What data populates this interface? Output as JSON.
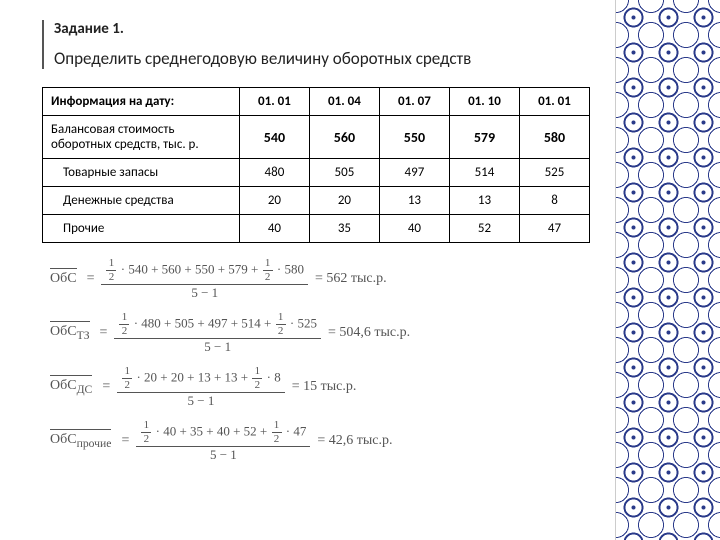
{
  "title": "Задание 1.",
  "subtitle": "Определить среднегодовую величину оборотных средств",
  "table": {
    "header": [
      "Информация на дату:",
      "01. 01",
      "01. 04",
      "01. 07",
      "01. 10",
      "01. 01"
    ],
    "rows": [
      {
        "label": "Балансовая стоимость оборотных средств, тыс. р.",
        "vals": [
          "540",
          "560",
          "550",
          "579",
          "580"
        ],
        "bold": true
      },
      {
        "label": "Товарные запасы",
        "vals": [
          "480",
          "505",
          "497",
          "514",
          "525"
        ],
        "indent": true
      },
      {
        "label": "Денежные средства",
        "vals": [
          "20",
          "20",
          "13",
          "13",
          "8"
        ],
        "indent": true
      },
      {
        "label": "Прочие",
        "vals": [
          "40",
          "35",
          "40",
          "52",
          "47"
        ],
        "indent": true
      }
    ],
    "col_widths": [
      "36%",
      "12.8%",
      "12.8%",
      "12.8%",
      "12.8%",
      "12.8%"
    ]
  },
  "formulas": [
    {
      "lhs": "ОбС",
      "terms": [
        "540",
        "560",
        "550",
        "579",
        "580"
      ],
      "den": "5 − 1",
      "result": "= 562 тыс.р."
    },
    {
      "lhs": "ОбС",
      "sub": "ТЗ",
      "terms": [
        "480",
        "505",
        "497",
        "514",
        "525"
      ],
      "den": "5 − 1",
      "result": "= 504,6 тыс.р."
    },
    {
      "lhs": "ОбС",
      "sub": "ДС",
      "terms": [
        "20",
        "20",
        "13",
        "13",
        "8"
      ],
      "den": "5 − 1",
      "result": "= 15 тыс.р."
    },
    {
      "lhs": "ОбС",
      "sub": "прочие",
      "terms": [
        "40",
        "35",
        "40",
        "52",
        "47"
      ],
      "den": "5 − 1",
      "result": "= 42,6 тыс.р."
    }
  ],
  "colors": {
    "text": "#222",
    "formula_text": "#555555",
    "border": "#000000",
    "pattern_blue": "#2a3a8a"
  }
}
